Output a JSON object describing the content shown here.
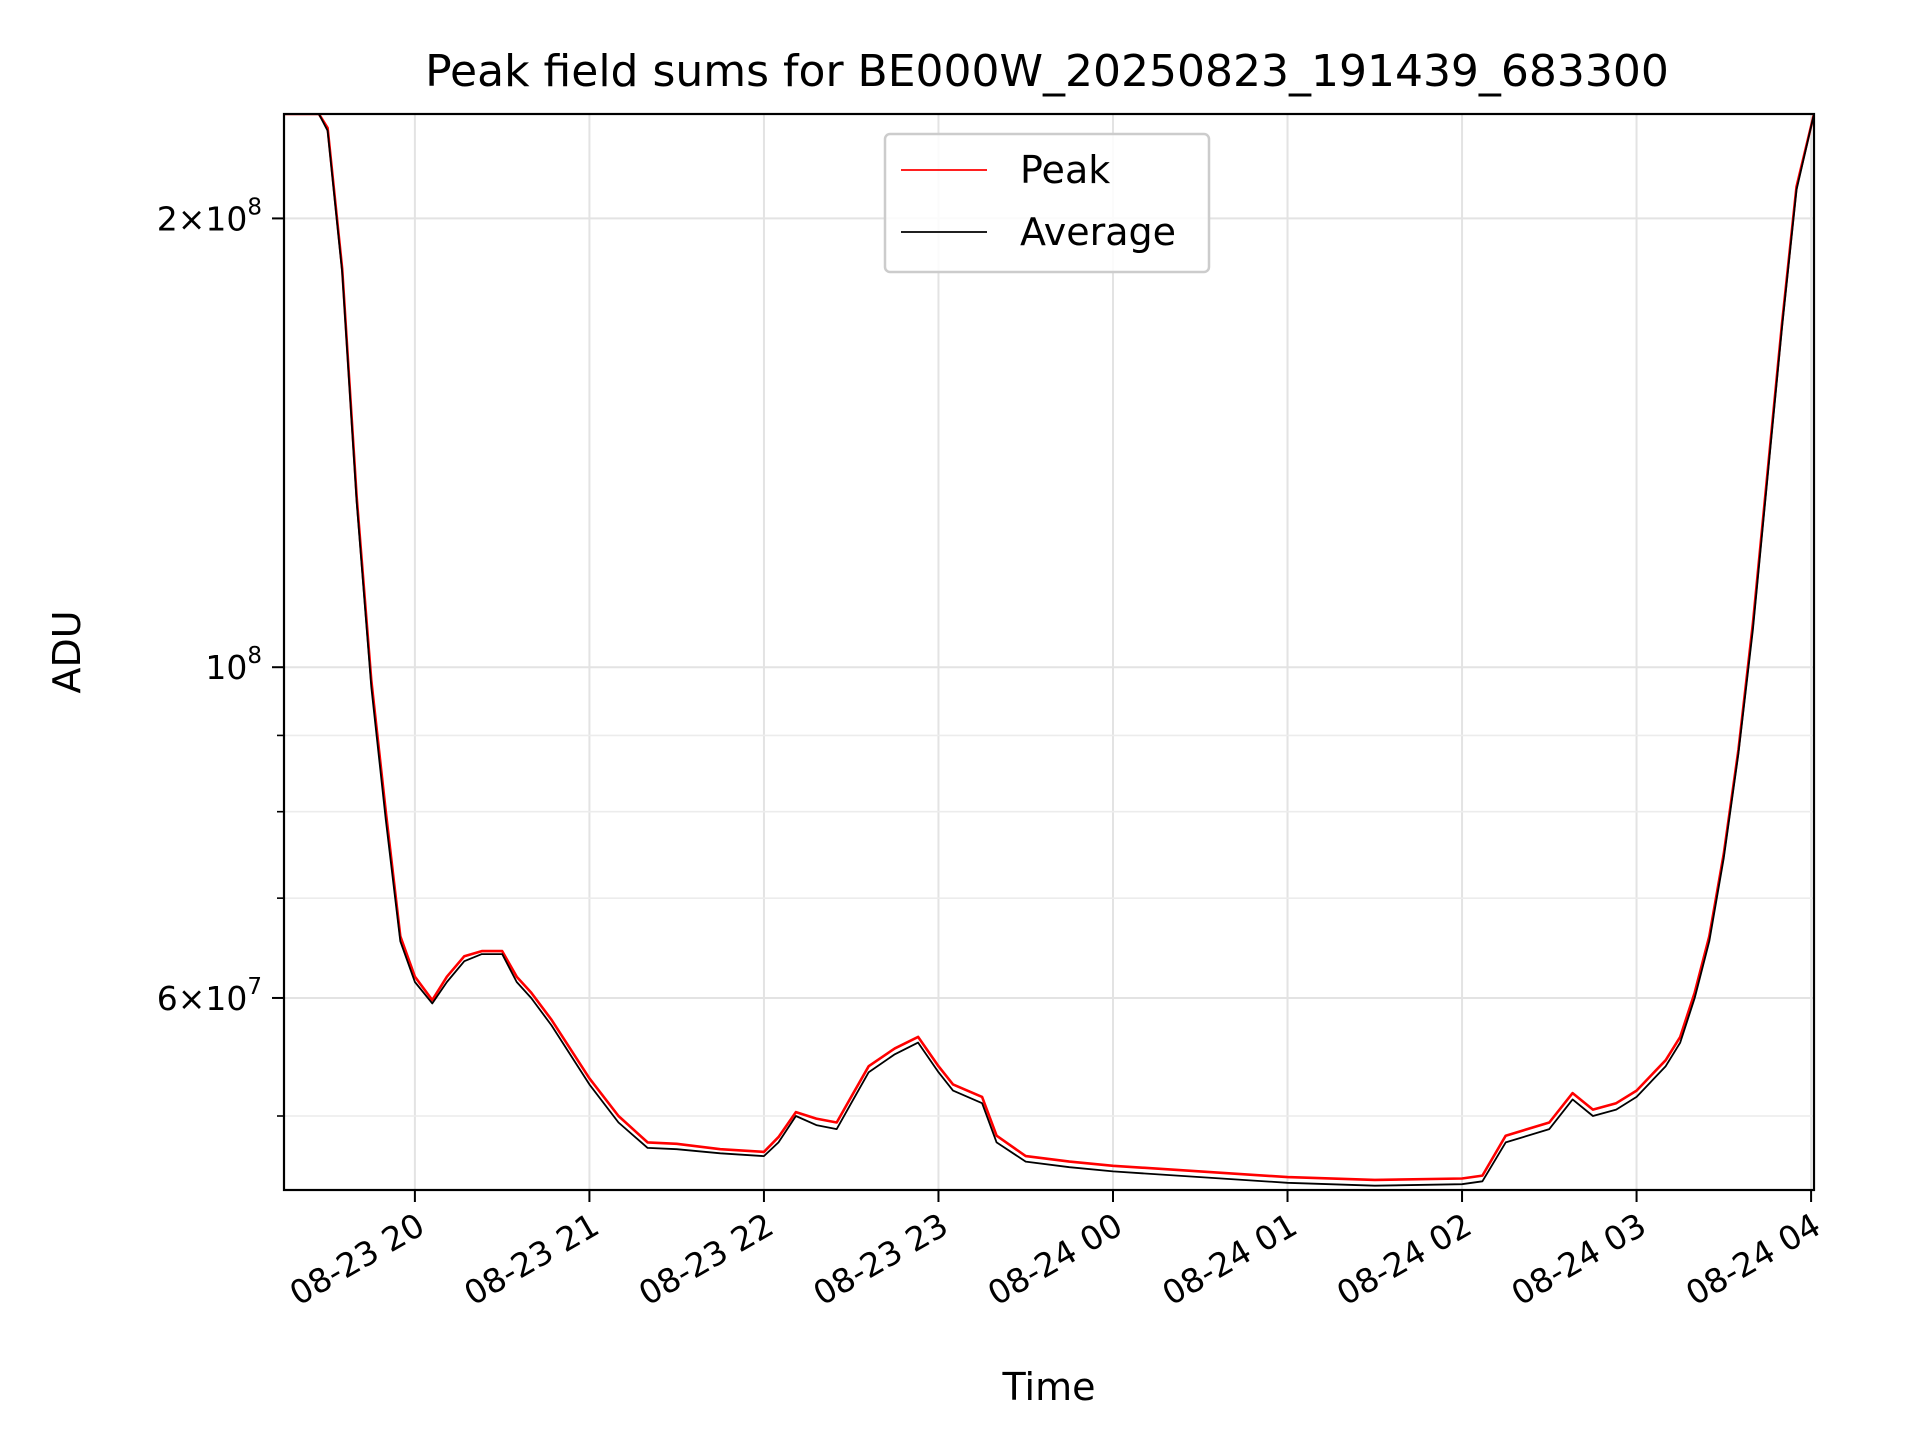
{
  "chart_data": {
    "type": "line",
    "title": "Peak field sums for BE000W_20250823_191439_683300",
    "xlabel": "Time",
    "ylabel": "ADU",
    "yscale": "log",
    "ylim": [
      44600000,
      235000000
    ],
    "xlim": [
      "2025-08-23 19:15",
      "2025-08-24 04:01"
    ],
    "grid": true,
    "legend_position": "top-center",
    "x_ticks": [
      {
        "label": "08-23 20",
        "value": "2025-08-23 20:00"
      },
      {
        "label": "08-23 21",
        "value": "2025-08-23 21:00"
      },
      {
        "label": "08-23 22",
        "value": "2025-08-23 22:00"
      },
      {
        "label": "08-23 23",
        "value": "2025-08-23 23:00"
      },
      {
        "label": "08-24 00",
        "value": "2025-08-24 00:00"
      },
      {
        "label": "08-24 01",
        "value": "2025-08-24 01:00"
      },
      {
        "label": "08-24 02",
        "value": "2025-08-24 02:00"
      },
      {
        "label": "08-24 03",
        "value": "2025-08-24 03:00"
      },
      {
        "label": "08-24 04",
        "value": "2025-08-24 04:00"
      }
    ],
    "y_major_ticks": [
      {
        "mantissa": "2",
        "exp": "8",
        "value": 200000000
      },
      {
        "mantissa": "",
        "exp": "8",
        "value": 100000000
      },
      {
        "mantissa": "6",
        "exp": "7",
        "value": 60000000
      }
    ],
    "y_minor_ticks": [
      50000000,
      70000000,
      80000000,
      90000000
    ],
    "series": [
      {
        "name": "Peak",
        "color": "#ff0000",
        "x": [
          "2025-08-23 19:15",
          "2025-08-23 19:27",
          "2025-08-23 19:30",
          "2025-08-23 19:35",
          "2025-08-23 19:40",
          "2025-08-23 19:45",
          "2025-08-23 19:50",
          "2025-08-23 19:55",
          "2025-08-23 20:00",
          "2025-08-23 20:06",
          "2025-08-23 20:11",
          "2025-08-23 20:17",
          "2025-08-23 20:23",
          "2025-08-23 20:30",
          "2025-08-23 20:35",
          "2025-08-23 20:40",
          "2025-08-23 20:47",
          "2025-08-23 21:00",
          "2025-08-23 21:10",
          "2025-08-23 21:20",
          "2025-08-23 21:30",
          "2025-08-23 21:45",
          "2025-08-23 22:00",
          "2025-08-23 22:05",
          "2025-08-23 22:11",
          "2025-08-23 22:18",
          "2025-08-23 22:25",
          "2025-08-23 22:30",
          "2025-08-23 22:36",
          "2025-08-23 22:45",
          "2025-08-23 22:53",
          "2025-08-23 23:00",
          "2025-08-23 23:05",
          "2025-08-23 23:15",
          "2025-08-23 23:20",
          "2025-08-23 23:30",
          "2025-08-23 23:45",
          "2025-08-24 00:00",
          "2025-08-24 00:30",
          "2025-08-24 01:00",
          "2025-08-24 01:30",
          "2025-08-24 02:00",
          "2025-08-24 02:07",
          "2025-08-24 02:15",
          "2025-08-24 02:30",
          "2025-08-24 02:38",
          "2025-08-24 02:45",
          "2025-08-24 02:53",
          "2025-08-24 03:00",
          "2025-08-24 03:10",
          "2025-08-24 03:15",
          "2025-08-24 03:20",
          "2025-08-24 03:25",
          "2025-08-24 03:30",
          "2025-08-24 03:35",
          "2025-08-24 03:40",
          "2025-08-24 03:45",
          "2025-08-24 03:50",
          "2025-08-24 03:55",
          "2025-08-24 04:01"
        ],
        "y": [
          235000000,
          235000000,
          230000000,
          185000000,
          130000000,
          98000000,
          80000000,
          66000000,
          62000000,
          59800000,
          62000000,
          64000000,
          64500000,
          64500000,
          62000000,
          60500000,
          58000000,
          53000000,
          50000000,
          48000000,
          47900000,
          47500000,
          47300000,
          48400000,
          50300000,
          49800000,
          49500000,
          51500000,
          54000000,
          55500000,
          56500000,
          54000000,
          52500000,
          51500000,
          48500000,
          47000000,
          46600000,
          46300000,
          45900000,
          45500000,
          45300000,
          45400000,
          45600000,
          48500000,
          49500000,
          51800000,
          50500000,
          51000000,
          52000000,
          54500000,
          56500000,
          60500000,
          66000000,
          75000000,
          88000000,
          107000000,
          135000000,
          170000000,
          210000000,
          235000000
        ]
      },
      {
        "name": "Average",
        "color": "#000000",
        "x": [
          "2025-08-23 19:15",
          "2025-08-23 19:27",
          "2025-08-23 19:30",
          "2025-08-23 19:35",
          "2025-08-23 19:40",
          "2025-08-23 19:45",
          "2025-08-23 19:50",
          "2025-08-23 19:55",
          "2025-08-23 20:00",
          "2025-08-23 20:06",
          "2025-08-23 20:11",
          "2025-08-23 20:17",
          "2025-08-23 20:23",
          "2025-08-23 20:30",
          "2025-08-23 20:35",
          "2025-08-23 20:40",
          "2025-08-23 20:47",
          "2025-08-23 21:00",
          "2025-08-23 21:10",
          "2025-08-23 21:20",
          "2025-08-23 21:30",
          "2025-08-23 21:45",
          "2025-08-23 22:00",
          "2025-08-23 22:05",
          "2025-08-23 22:11",
          "2025-08-23 22:18",
          "2025-08-23 22:25",
          "2025-08-23 22:30",
          "2025-08-23 22:36",
          "2025-08-23 22:45",
          "2025-08-23 22:53",
          "2025-08-23 23:00",
          "2025-08-23 23:05",
          "2025-08-23 23:15",
          "2025-08-23 23:20",
          "2025-08-23 23:30",
          "2025-08-23 23:45",
          "2025-08-24 00:00",
          "2025-08-24 00:30",
          "2025-08-24 01:00",
          "2025-08-24 01:30",
          "2025-08-24 02:00",
          "2025-08-24 02:07",
          "2025-08-24 02:15",
          "2025-08-24 02:30",
          "2025-08-24 02:38",
          "2025-08-24 02:45",
          "2025-08-24 02:53",
          "2025-08-24 03:00",
          "2025-08-24 03:10",
          "2025-08-24 03:15",
          "2025-08-24 03:20",
          "2025-08-24 03:25",
          "2025-08-24 03:30",
          "2025-08-24 03:35",
          "2025-08-24 03:40",
          "2025-08-24 03:45",
          "2025-08-24 03:50",
          "2025-08-24 03:55",
          "2025-08-24 04:01"
        ],
        "y": [
          235000000,
          235000000,
          229000000,
          184000000,
          129000000,
          97000000,
          79000000,
          65500000,
          61500000,
          59500000,
          61500000,
          63500000,
          64200000,
          64200000,
          61500000,
          60000000,
          57500000,
          52500000,
          49500000,
          47600000,
          47500000,
          47200000,
          47000000,
          48000000,
          50000000,
          49300000,
          49000000,
          51000000,
          53500000,
          55000000,
          56000000,
          53500000,
          52000000,
          51000000,
          48000000,
          46600000,
          46200000,
          45900000,
          45500000,
          45100000,
          44900000,
          45000000,
          45200000,
          48000000,
          49000000,
          51300000,
          50000000,
          50500000,
          51500000,
          54000000,
          56000000,
          60000000,
          65500000,
          74500000,
          87500000,
          106000000,
          134000000,
          169000000,
          209000000,
          235000000
        ]
      }
    ]
  }
}
